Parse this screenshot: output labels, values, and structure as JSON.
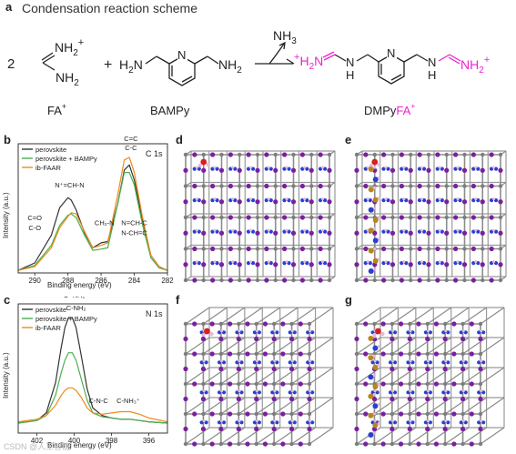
{
  "panel_labels": {
    "a": "a",
    "b": "b",
    "c": "c",
    "d": "d",
    "e": "e",
    "f": "f",
    "g": "g"
  },
  "scheme": {
    "title": "Condensation reaction scheme",
    "coef": "2",
    "plus": "+",
    "fa_top": "NH",
    "fa_top_sub": "2",
    "fa_top_charge": "+",
    "fa_bottom": "NH",
    "fa_bottom_sub": "2",
    "fa_label": "FA",
    "fa_label_sup": "+",
    "bampy_left": "H",
    "bampy_left_sub": "2",
    "bampy_left_n": "N",
    "bampy_ring_n": "N",
    "bampy_right": "NH",
    "bampy_right_sub": "2",
    "bampy_label": "BAMPy",
    "byproduct": "NH",
    "byproduct_sub": "3",
    "prod_left_charge": "+",
    "prod_left": "H",
    "prod_left_sub": "2",
    "prod_left_n": "N",
    "prod_nh_left": "N",
    "prod_nh_left_h": "H",
    "prod_ring_n": "N",
    "prod_nh_right_h": "H",
    "prod_nh_right": "N",
    "prod_right": "NH",
    "prod_right_sub": "2",
    "prod_right_charge": "+",
    "prod_label_black": "DMPy",
    "prod_label_pink": "FA",
    "prod_label_sup": "+",
    "accent_color": "#ee22cc"
  },
  "chart_data": [
    {
      "type": "line",
      "panel": "b",
      "title": "C 1s",
      "xlabel": "Binding energy (eV)",
      "ylabel": "Intensity (a.u.)",
      "xlim": [
        291,
        282
      ],
      "x_reversed": true,
      "xticks": [
        290,
        288,
        286,
        284,
        282
      ],
      "x": [
        291.0,
        290.0,
        289.0,
        288.5,
        288.0,
        287.8,
        287.5,
        287.0,
        286.5,
        286.0,
        285.6,
        285.0,
        284.6,
        284.3,
        284.0,
        283.5,
        283.0,
        282.5,
        282.0
      ],
      "series": [
        {
          "name": "perovskite",
          "color": "#333333",
          "values": [
            0.02,
            0.08,
            0.3,
            0.52,
            0.6,
            0.58,
            0.5,
            0.32,
            0.2,
            0.24,
            0.25,
            0.55,
            0.82,
            0.86,
            0.74,
            0.42,
            0.14,
            0.05,
            0.02
          ]
        },
        {
          "name": "perovskite + BAMPy",
          "color": "#4caf50",
          "values": [
            0.02,
            0.06,
            0.22,
            0.38,
            0.46,
            0.47,
            0.44,
            0.3,
            0.18,
            0.19,
            0.2,
            0.55,
            0.8,
            0.8,
            0.7,
            0.38,
            0.12,
            0.04,
            0.02
          ]
        },
        {
          "name": "ib-FAAR",
          "color": "#f08a1c",
          "values": [
            0.02,
            0.05,
            0.2,
            0.36,
            0.45,
            0.48,
            0.47,
            0.33,
            0.2,
            0.22,
            0.24,
            0.62,
            0.9,
            0.92,
            0.8,
            0.44,
            0.14,
            0.05,
            0.02
          ]
        }
      ],
      "annotations": [
        {
          "text": "C=C",
          "x": 284.2,
          "y": 1.05
        },
        {
          "text": "C-C",
          "x": 284.2,
          "y": 0.98
        },
        {
          "text": "N⁺=CH-N",
          "x": 287.9,
          "y": 0.68
        },
        {
          "text": "C=O",
          "x": 290.0,
          "y": 0.42
        },
        {
          "text": "C-O",
          "x": 290.0,
          "y": 0.34
        },
        {
          "text": "CH₂-N",
          "x": 285.8,
          "y": 0.38
        },
        {
          "text": "N=CH-C",
          "x": 284.0,
          "y": 0.38
        },
        {
          "text": "N-CH=C",
          "x": 284.0,
          "y": 0.3
        }
      ],
      "legend": "top-left"
    },
    {
      "type": "line",
      "panel": "c",
      "title": "N 1s",
      "xlabel": "Binding energy (eV)",
      "ylabel": "Intensity (a.u.)",
      "xlim": [
        403,
        395
      ],
      "x_reversed": true,
      "xticks": [
        402,
        400,
        398,
        396
      ],
      "x": [
        403.0,
        402.0,
        401.5,
        401.0,
        400.7,
        400.5,
        400.3,
        400.1,
        399.9,
        399.6,
        399.3,
        399.0,
        398.5,
        398.0,
        397.5,
        397.0,
        396.5,
        396.0,
        395.0
      ],
      "series": [
        {
          "name": "perovskite",
          "color": "#333333",
          "values": [
            0.08,
            0.1,
            0.16,
            0.4,
            0.68,
            0.84,
            0.92,
            0.92,
            0.84,
            0.6,
            0.35,
            0.2,
            0.14,
            0.12,
            0.11,
            0.11,
            0.1,
            0.09,
            0.08
          ]
        },
        {
          "name": "perovskite + BAMPy",
          "color": "#4caf50",
          "values": [
            0.08,
            0.1,
            0.14,
            0.3,
            0.48,
            0.58,
            0.64,
            0.64,
            0.58,
            0.42,
            0.26,
            0.16,
            0.13,
            0.12,
            0.11,
            0.11,
            0.1,
            0.09,
            0.08
          ]
        },
        {
          "name": "ib-FAAR",
          "color": "#f08a1c",
          "values": [
            0.09,
            0.11,
            0.14,
            0.22,
            0.3,
            0.34,
            0.36,
            0.36,
            0.34,
            0.28,
            0.2,
            0.16,
            0.15,
            0.16,
            0.17,
            0.17,
            0.15,
            0.12,
            0.09
          ]
        }
      ],
      "annotations": [
        {
          "text": "C=NH₂⁺",
          "x": 399.9,
          "y": 1.08
        },
        {
          "text": "C-NH₂",
          "x": 399.9,
          "y": 0.98
        },
        {
          "text": "C-N-C",
          "x": 398.7,
          "y": 0.24
        },
        {
          "text": "C-NH₃⁺",
          "x": 397.1,
          "y": 0.24
        }
      ],
      "legend": "top-left"
    }
  ],
  "watermark": "CSDN @人工智能"
}
